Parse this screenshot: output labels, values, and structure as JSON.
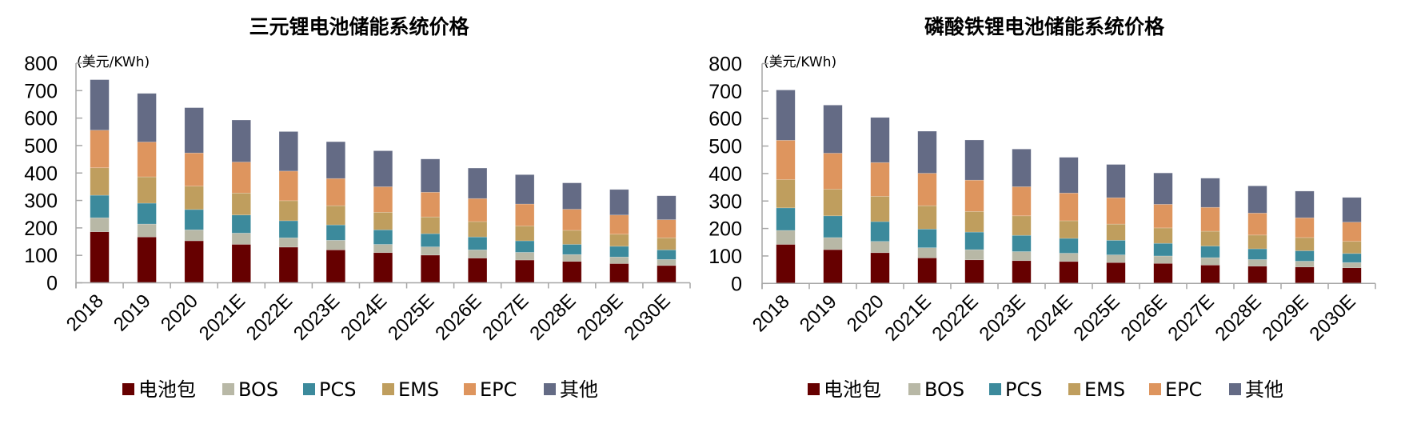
{
  "chart_data": [
    {
      "type": "bar",
      "stacked": true,
      "title": "三元锂电池储能系统价格",
      "ylabel": "(美元/KWh)",
      "xlabel": "",
      "ylim": [
        0,
        800
      ],
      "yticks": [
        0,
        100,
        200,
        300,
        400,
        500,
        600,
        700,
        800
      ],
      "grid": false,
      "legend_position": "bottom",
      "categories": [
        "2018",
        "2019",
        "2020",
        "2021E",
        "2022E",
        "2023E",
        "2024E",
        "2025E",
        "2026E",
        "2027E",
        "2028E",
        "2029E",
        "2030E"
      ],
      "series": [
        {
          "name": "电池包",
          "color": "#660000",
          "values": [
            186,
            167,
            153,
            140,
            130,
            120,
            110,
            101,
            90,
            83,
            78,
            70,
            63
          ]
        },
        {
          "name": "BOS",
          "color": "#B8B8A6",
          "values": [
            51,
            47,
            40,
            41,
            34,
            35,
            30,
            30,
            30,
            28,
            25,
            24,
            22
          ]
        },
        {
          "name": "PCS",
          "color": "#3C8A9C",
          "values": [
            82,
            76,
            74,
            66,
            62,
            56,
            53,
            48,
            47,
            42,
            37,
            39,
            35
          ]
        },
        {
          "name": "EMS",
          "color": "#BF9E5E",
          "values": [
            100,
            96,
            85,
            80,
            73,
            70,
            64,
            61,
            56,
            54,
            51,
            44,
            44
          ]
        },
        {
          "name": "EPC",
          "color": "#DE955E",
          "values": [
            137,
            127,
            121,
            113,
            108,
            99,
            93,
            90,
            84,
            80,
            77,
            70,
            66
          ]
        },
        {
          "name": "其他",
          "color": "#646B85",
          "values": [
            184,
            177,
            165,
            153,
            144,
            134,
            131,
            121,
            111,
            107,
            96,
            93,
            87
          ]
        }
      ]
    },
    {
      "type": "bar",
      "stacked": true,
      "title": "磷酸铁锂电池储能系统价格",
      "ylabel": "(美元/KWh)",
      "xlabel": "",
      "ylim": [
        0,
        800
      ],
      "yticks": [
        0,
        100,
        200,
        300,
        400,
        500,
        600,
        700,
        800
      ],
      "grid": false,
      "legend_position": "bottom",
      "categories": [
        "2018",
        "2019",
        "2020",
        "2021E",
        "2022E",
        "2023E",
        "2024E",
        "2025E",
        "2026E",
        "2027E",
        "2028E",
        "2029E",
        "2030E"
      ],
      "series": [
        {
          "name": "电池包",
          "color": "#660000",
          "values": [
            142,
            123,
            112,
            93,
            86,
            83,
            80,
            76,
            73,
            67,
            63,
            60,
            57
          ]
        },
        {
          "name": "BOS",
          "color": "#B8B8A6",
          "values": [
            51,
            44,
            41,
            37,
            37,
            33,
            30,
            28,
            27,
            27,
            24,
            21,
            19
          ]
        },
        {
          "name": "PCS",
          "color": "#3C8A9C",
          "values": [
            82,
            79,
            72,
            68,
            64,
            59,
            54,
            53,
            46,
            42,
            39,
            38,
            33
          ]
        },
        {
          "name": "EMS",
          "color": "#BF9E5E",
          "values": [
            103,
            97,
            92,
            85,
            75,
            71,
            64,
            59,
            56,
            54,
            50,
            48,
            44
          ]
        },
        {
          "name": "EPC",
          "color": "#DE955E",
          "values": [
            143,
            131,
            123,
            118,
            114,
            106,
            101,
            96,
            86,
            87,
            80,
            72,
            70
          ]
        },
        {
          "name": "其他",
          "color": "#646B85",
          "values": [
            183,
            175,
            164,
            153,
            146,
            137,
            130,
            121,
            114,
            106,
            99,
            97,
            90
          ]
        }
      ]
    }
  ]
}
